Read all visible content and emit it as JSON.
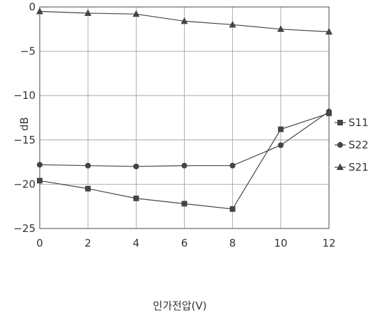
{
  "chart_data": {
    "type": "line",
    "x": [
      0,
      2,
      4,
      6,
      8,
      10,
      12
    ],
    "xlabel": "인가전압(V)",
    "ylabel": "dB",
    "xlim": [
      0,
      12
    ],
    "ylim": [
      -25,
      0
    ],
    "xticks": [
      "0",
      "2",
      "4",
      "6",
      "8",
      "10",
      "12"
    ],
    "yticks": [
      "0",
      "−5",
      "−10",
      "−15",
      "−20",
      "−25"
    ],
    "grid": true,
    "legend_position": "right",
    "series": [
      {
        "name": "S11",
        "marker": "square",
        "values": [
          -19.6,
          -20.5,
          -21.6,
          -22.2,
          -22.8,
          -13.8,
          -12.0
        ]
      },
      {
        "name": "S22",
        "marker": "circle",
        "values": [
          -17.8,
          -17.9,
          -18.0,
          -17.9,
          -17.9,
          -15.6,
          -11.8
        ]
      },
      {
        "name": "S21",
        "marker": "triangle",
        "values": [
          -0.5,
          -0.7,
          -0.8,
          -1.6,
          -2.0,
          -2.5,
          -2.8
        ]
      }
    ]
  }
}
